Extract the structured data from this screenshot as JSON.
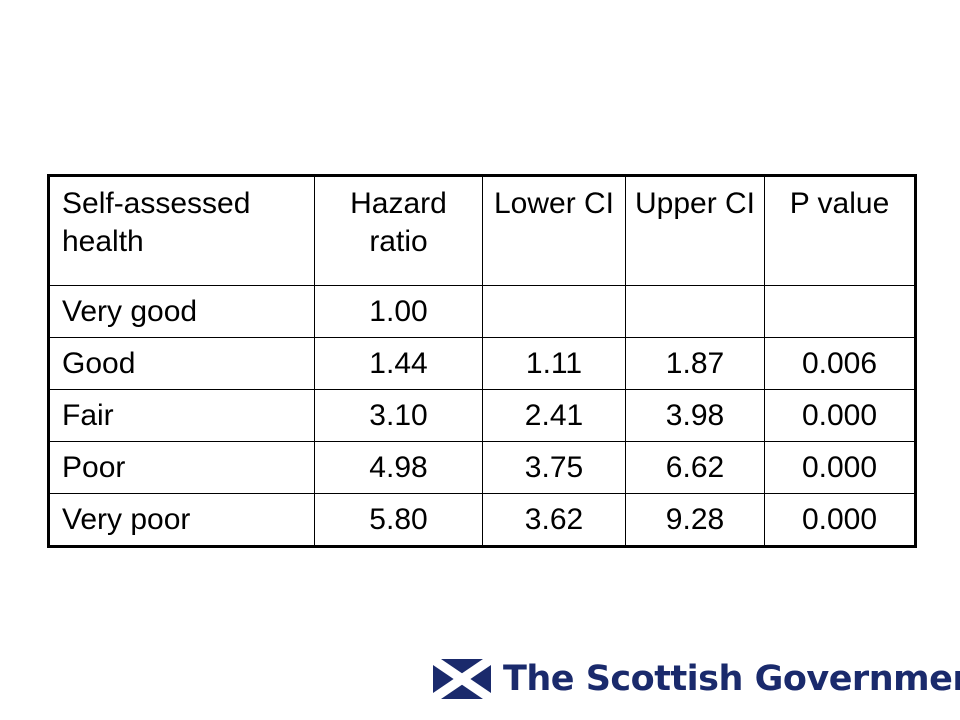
{
  "table": {
    "headers": [
      "Self-assessed health",
      "Hazard ratio",
      "Lower CI",
      "Upper CI",
      "P value"
    ],
    "rows": [
      [
        "Very good",
        "1.00",
        "",
        "",
        ""
      ],
      [
        "Good",
        "1.44",
        "1.11",
        "1.87",
        "0.006"
      ],
      [
        "Fair",
        "3.10",
        "2.41",
        "3.98",
        "0.000"
      ],
      [
        "Poor",
        "4.98",
        "3.75",
        "6.62",
        "0.000"
      ],
      [
        "Very poor",
        "5.80",
        "3.62",
        "9.28",
        "0.000"
      ]
    ]
  },
  "footer": {
    "logo_icon": "saltire-flag-icon",
    "logo_text": "The Scottish Government",
    "brand_color": "#1a2a6c"
  }
}
